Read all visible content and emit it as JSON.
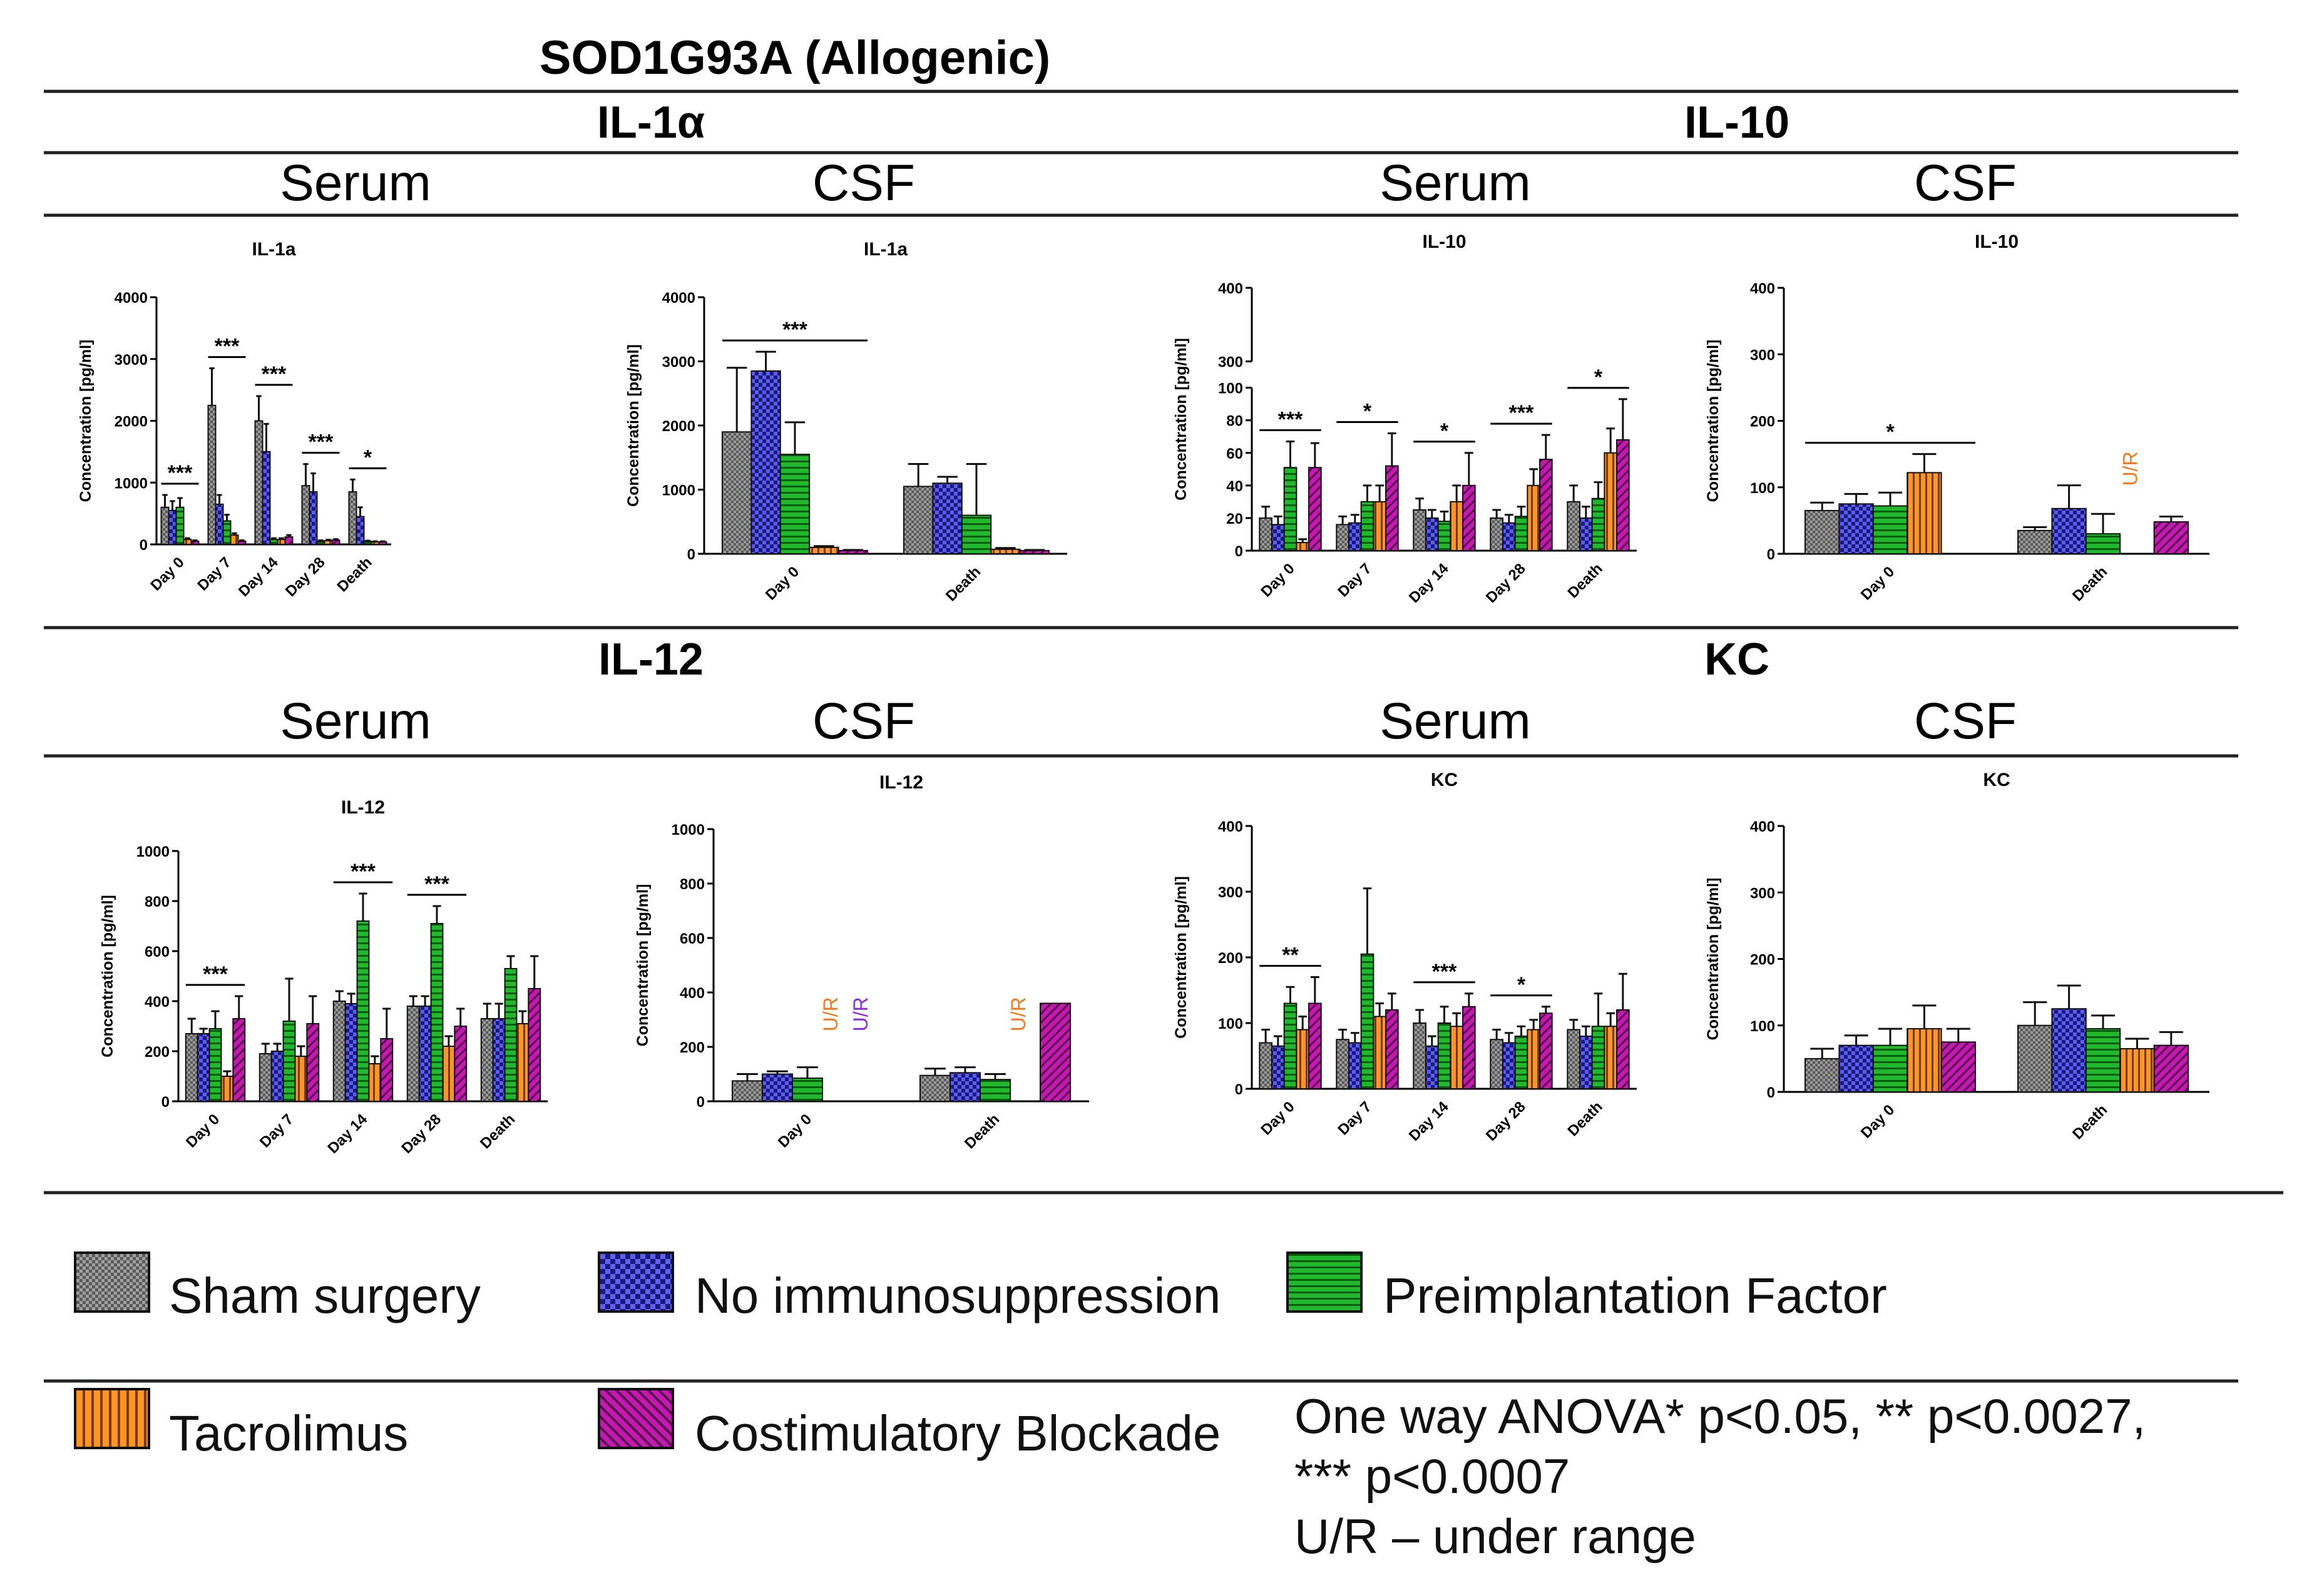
{
  "figure_title": "SOD1G93A (Allogenic)",
  "headers": {
    "il1a": "IL-1α",
    "il10": "IL-10",
    "il12": "IL-12",
    "kc": "KC",
    "serum": "Serum",
    "csf": "CSF"
  },
  "legend": {
    "sham": "Sham surgery",
    "noimm": "No immunosuppression",
    "pif": "Preimplantation Factor",
    "tac": "Tacrolimus",
    "cost": "Costimulatory Blockade",
    "anova_line1": "One way ANOVA* p<0.05, ** p<0.0027,",
    "anova_line2": "*** p<0.0007",
    "ur_note": "U/R – under range"
  },
  "colors": {
    "sham": "#8a8a8a",
    "noimm": "#4a4ad8",
    "pif": "#1fae2a",
    "tac": "#ff8c1a",
    "cost": "#b0189e",
    "ur_orange": "#f07a1e",
    "ur_purple": "#8a2be2"
  },
  "chart_data": [
    {
      "id": "il1a_serum",
      "type": "bar",
      "title": "IL-1a",
      "ylabel": "Concentration [pg/ml]",
      "ylim": [
        0,
        4000
      ],
      "yticks": [
        0,
        1000,
        2000,
        3000,
        4000
      ],
      "categories": [
        "Day 0",
        "Day 7",
        "Day 14",
        "Day 28",
        "Death"
      ],
      "series": [
        {
          "name": "Sham surgery",
          "values": [
            600,
            2250,
            2000,
            950,
            850
          ],
          "errors": [
            200,
            600,
            400,
            350,
            200
          ]
        },
        {
          "name": "No immunosuppression",
          "values": [
            550,
            650,
            1500,
            850,
            450
          ],
          "errors": [
            150,
            150,
            450,
            300,
            150
          ]
        },
        {
          "name": "Preimplantation Factor",
          "values": [
            600,
            380,
            80,
            50,
            50
          ],
          "errors": [
            150,
            100,
            20,
            15,
            10
          ]
        },
        {
          "name": "Tacrolimus",
          "values": [
            80,
            150,
            80,
            60,
            40
          ],
          "errors": [
            20,
            30,
            20,
            15,
            10
          ]
        },
        {
          "name": "Costimulatory Blockade",
          "values": [
            50,
            50,
            120,
            70,
            40
          ],
          "errors": [
            15,
            15,
            30,
            15,
            10
          ]
        }
      ],
      "annotations": [
        {
          "label": "***",
          "category": "Day 0"
        },
        {
          "label": "***",
          "category": "Day 7"
        },
        {
          "label": "***",
          "category": "Day 14"
        },
        {
          "label": "***",
          "category": "Day 28"
        },
        {
          "label": "*",
          "category": "Death"
        }
      ]
    },
    {
      "id": "il1a_csf",
      "type": "bar",
      "title": "IL-1a",
      "ylabel": "Concentration [pg/ml]",
      "ylim": [
        0,
        4000
      ],
      "yticks": [
        0,
        1000,
        2000,
        3000,
        4000
      ],
      "categories": [
        "Day 0",
        "Death"
      ],
      "series": [
        {
          "name": "Sham surgery",
          "values": [
            1900,
            1050
          ],
          "errors": [
            1000,
            350
          ]
        },
        {
          "name": "No immunosuppression",
          "values": [
            2850,
            1100
          ],
          "errors": [
            300,
            100
          ]
        },
        {
          "name": "Preimplantation Factor",
          "values": [
            1550,
            600
          ],
          "errors": [
            500,
            800
          ]
        },
        {
          "name": "Tacrolimus",
          "values": [
            100,
            70
          ],
          "errors": [
            20,
            20
          ]
        },
        {
          "name": "Costimulatory Blockade",
          "values": [
            50,
            50
          ],
          "errors": [
            10,
            10
          ]
        }
      ],
      "annotations": [
        {
          "label": "***",
          "category": "Day 0"
        }
      ]
    },
    {
      "id": "il10_serum",
      "type": "bar",
      "title": "IL-10",
      "ylabel": "Concentration [pg/ml]",
      "ylim": [
        0,
        400
      ],
      "axis_break": [
        100,
        300
      ],
      "yticks": [
        0,
        20,
        40,
        60,
        80,
        100,
        300,
        400
      ],
      "categories": [
        "Day 0",
        "Day 7",
        "Day 14",
        "Day 28",
        "Death"
      ],
      "series": [
        {
          "name": "Sham surgery",
          "values": [
            20,
            16,
            25,
            20,
            30
          ],
          "errors": [
            7,
            5,
            7,
            5,
            10
          ]
        },
        {
          "name": "No immunosuppression",
          "values": [
            16,
            17,
            20,
            17,
            20
          ],
          "errors": [
            5,
            5,
            5,
            5,
            7
          ]
        },
        {
          "name": "Preimplantation Factor",
          "values": [
            51,
            30,
            18,
            21,
            32
          ],
          "errors": [
            16,
            10,
            6,
            6,
            10
          ]
        },
        {
          "name": "Tacrolimus",
          "values": [
            5,
            30,
            30,
            40,
            60
          ],
          "errors": [
            2,
            10,
            10,
            10,
            15
          ]
        },
        {
          "name": "Costimulatory Blockade",
          "values": [
            51,
            52,
            40,
            56,
            68
          ],
          "errors": [
            15,
            20,
            20,
            15,
            25
          ]
        }
      ],
      "annotations": [
        {
          "label": "***",
          "category": "Day 0"
        },
        {
          "label": "*",
          "category": "Day 7"
        },
        {
          "label": "*",
          "category": "Day 14"
        },
        {
          "label": "***",
          "category": "Day 28"
        },
        {
          "label": "*",
          "category": "Death"
        }
      ]
    },
    {
      "id": "il10_csf",
      "type": "bar",
      "title": "IL-10",
      "ylabel": "Concentration [pg/ml]",
      "ylim": [
        0,
        400
      ],
      "yticks": [
        0,
        100,
        200,
        300,
        400
      ],
      "categories": [
        "Day 0",
        "Death"
      ],
      "series": [
        {
          "name": "Sham surgery",
          "values": [
            65,
            35
          ],
          "errors": [
            12,
            5
          ]
        },
        {
          "name": "No immunosuppression",
          "values": [
            75,
            68
          ],
          "errors": [
            15,
            35
          ]
        },
        {
          "name": "Preimplantation Factor",
          "values": [
            72,
            30
          ],
          "errors": [
            20,
            30
          ]
        },
        {
          "name": "Tacrolimus",
          "values": [
            122,
            null
          ],
          "errors": [
            28,
            null
          ]
        },
        {
          "name": "Costimulatory Blockade",
          "values": [
            null,
            48
          ],
          "errors": [
            null,
            8
          ]
        }
      ],
      "annotations": [
        {
          "label": "*",
          "category": "Day 0"
        }
      ],
      "ur_labels": [
        {
          "text": "U/R",
          "category": "Death",
          "series": "Tacrolimus",
          "color": "orange"
        }
      ]
    },
    {
      "id": "il12_serum",
      "type": "bar",
      "title": "IL-12",
      "ylabel": "Concentration [pg/ml]",
      "ylim": [
        0,
        1000
      ],
      "yticks": [
        0,
        200,
        400,
        600,
        800,
        1000
      ],
      "categories": [
        "Day 0",
        "Day 7",
        "Day 14",
        "Day 28",
        "Death"
      ],
      "series": [
        {
          "name": "Sham surgery",
          "values": [
            270,
            190,
            400,
            380,
            330
          ],
          "errors": [
            60,
            40,
            40,
            40,
            60
          ]
        },
        {
          "name": "No immunosuppression",
          "values": [
            270,
            200,
            390,
            380,
            330
          ],
          "errors": [
            20,
            30,
            40,
            40,
            60
          ]
        },
        {
          "name": "Preimplantation Factor",
          "values": [
            290,
            320,
            720,
            710,
            530
          ],
          "errors": [
            70,
            170,
            110,
            70,
            50
          ]
        },
        {
          "name": "Tacrolimus",
          "values": [
            100,
            180,
            150,
            220,
            310
          ],
          "errors": [
            20,
            40,
            30,
            40,
            50
          ]
        },
        {
          "name": "Costimulatory Blockade",
          "values": [
            330,
            310,
            250,
            300,
            450
          ],
          "errors": [
            90,
            110,
            120,
            70,
            130
          ]
        }
      ],
      "annotations": [
        {
          "label": "***",
          "category": "Day 0"
        },
        {
          "label": "***",
          "category": "Day 14"
        },
        {
          "label": "***",
          "category": "Day 28"
        }
      ]
    },
    {
      "id": "il12_csf",
      "type": "bar",
      "title": "IL-12",
      "ylabel": "Concentration [pg/ml]",
      "ylim": [
        0,
        1000
      ],
      "yticks": [
        0,
        200,
        400,
        600,
        800,
        1000
      ],
      "categories": [
        "Day 0",
        "Death"
      ],
      "series": [
        {
          "name": "Sham surgery",
          "values": [
            75,
            95
          ],
          "errors": [
            25,
            25
          ]
        },
        {
          "name": "No immunosuppression",
          "values": [
            100,
            105
          ],
          "errors": [
            10,
            20
          ]
        },
        {
          "name": "Preimplantation Factor",
          "values": [
            85,
            80
          ],
          "errors": [
            40,
            20
          ]
        },
        {
          "name": "Tacrolimus",
          "values": [
            null,
            null
          ],
          "errors": [
            null,
            null
          ]
        },
        {
          "name": "Costimulatory Blockade",
          "values": [
            null,
            360
          ],
          "errors": [
            null,
            0
          ]
        }
      ],
      "ur_labels": [
        {
          "text": "U/R",
          "category": "Day 0",
          "series": "Tacrolimus",
          "color": "orange"
        },
        {
          "text": "U/R",
          "category": "Day 0",
          "series": "Costimulatory Blockade",
          "color": "purple"
        },
        {
          "text": "U/R",
          "category": "Death",
          "series": "Tacrolimus",
          "color": "orange"
        }
      ]
    },
    {
      "id": "kc_serum",
      "type": "bar",
      "title": "KC",
      "ylabel": "Concentration [pg/ml]",
      "ylim": [
        0,
        400
      ],
      "yticks": [
        0,
        100,
        200,
        300,
        400
      ],
      "categories": [
        "Day 0",
        "Day 7",
        "Day 14",
        "Day 28",
        "Death"
      ],
      "series": [
        {
          "name": "Sham surgery",
          "values": [
            70,
            75,
            100,
            75,
            90
          ],
          "errors": [
            20,
            15,
            20,
            15,
            15
          ]
        },
        {
          "name": "No immunosuppression",
          "values": [
            65,
            70,
            65,
            70,
            80
          ],
          "errors": [
            15,
            15,
            15,
            15,
            15
          ]
        },
        {
          "name": "Preimplantation Factor",
          "values": [
            130,
            205,
            100,
            80,
            95
          ],
          "errors": [
            25,
            100,
            25,
            15,
            50
          ]
        },
        {
          "name": "Tacrolimus",
          "values": [
            90,
            110,
            95,
            90,
            95
          ],
          "errors": [
            20,
            20,
            20,
            15,
            20
          ]
        },
        {
          "name": "Costimulatory Blockade",
          "values": [
            130,
            120,
            125,
            115,
            120
          ],
          "errors": [
            40,
            25,
            20,
            10,
            55
          ]
        }
      ],
      "annotations": [
        {
          "label": "**",
          "category": "Day 0"
        },
        {
          "label": "***",
          "category": "Day 14"
        },
        {
          "label": "*",
          "category": "Day 28"
        }
      ]
    },
    {
      "id": "kc_csf",
      "type": "bar",
      "title": "KC",
      "ylabel": "Concentration [pg/ml]",
      "ylim": [
        0,
        400
      ],
      "yticks": [
        0,
        100,
        200,
        300,
        400
      ],
      "categories": [
        "Day 0",
        "Death"
      ],
      "series": [
        {
          "name": "Sham surgery",
          "values": [
            50,
            100
          ],
          "errors": [
            15,
            35
          ]
        },
        {
          "name": "No immunosuppression",
          "values": [
            70,
            125
          ],
          "errors": [
            15,
            35
          ]
        },
        {
          "name": "Preimplantation Factor",
          "values": [
            70,
            95
          ],
          "errors": [
            25,
            20
          ]
        },
        {
          "name": "Tacrolimus",
          "values": [
            95,
            65
          ],
          "errors": [
            35,
            15
          ]
        },
        {
          "name": "Costimulatory Blockade",
          "values": [
            75,
            70
          ],
          "errors": [
            20,
            20
          ]
        }
      ]
    }
  ]
}
